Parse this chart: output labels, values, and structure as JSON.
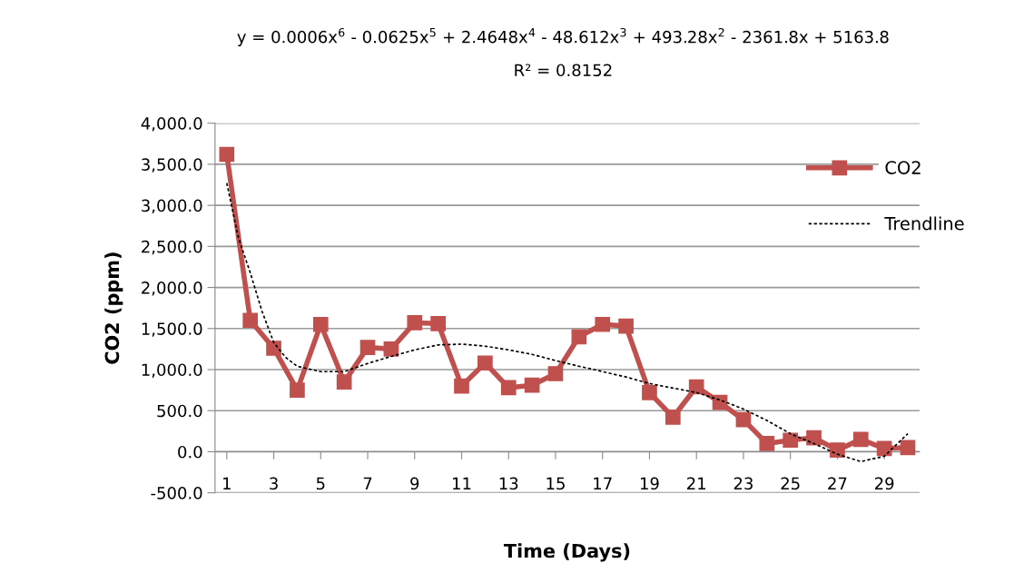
{
  "chart_data": {
    "type": "line",
    "xlabel": "Time (Days)",
    "ylabel": "CO2 (ppm)",
    "annotations": [
      "y = 0.0006x$^{6}$ - 0.0625x$^{5}$ + 2.4648x$^{4}$ - 48.612x$^{3}$ + 493.28x$^{2}$ - 2361.8x + 5163.8",
      "R² = 0.8152"
    ],
    "x": [
      1,
      2,
      3,
      4,
      5,
      6,
      7,
      8,
      9,
      10,
      11,
      12,
      13,
      14,
      15,
      16,
      17,
      18,
      19,
      20,
      21,
      22,
      23,
      24,
      25,
      26,
      27,
      28,
      29,
      30
    ],
    "xlim": [
      0.5,
      30.5
    ],
    "xticks": [
      1,
      3,
      5,
      7,
      9,
      11,
      13,
      15,
      17,
      19,
      21,
      23,
      25,
      27,
      29
    ],
    "ylim": [
      -500,
      4000
    ],
    "yticks": [
      {
        "value": -500,
        "label": "-500.0"
      },
      {
        "value": 0,
        "label": "0.0"
      },
      {
        "value": 500,
        "label": "500.0"
      },
      {
        "value": 1000,
        "label": "1,000.0"
      },
      {
        "value": 1500,
        "label": "1,500.0"
      },
      {
        "value": 2000,
        "label": "2,000.0"
      },
      {
        "value": 2500,
        "label": "2,500.0"
      },
      {
        "value": 3000,
        "label": "3,000.0"
      },
      {
        "value": 3500,
        "label": "3,500.0"
      },
      {
        "value": 4000,
        "label": "4,000.0"
      }
    ],
    "grid": "y",
    "legend": "right",
    "series": [
      {
        "name": "CO2",
        "color": "#c0504d",
        "marker": "square",
        "line_style": "solid",
        "values": [
          3620,
          1600,
          1260,
          750,
          1550,
          850,
          1270,
          1250,
          1570,
          1560,
          800,
          1080,
          780,
          810,
          950,
          1400,
          1550,
          1530,
          720,
          420,
          790,
          600,
          390,
          100,
          140,
          170,
          20,
          150,
          40,
          50
        ]
      },
      {
        "name": "Trendline",
        "color": "#000000",
        "marker": "none",
        "line_style": "dashed",
        "x": [
          1,
          1.5,
          2,
          2.5,
          3,
          3.5,
          4,
          5,
          6,
          7,
          8,
          9,
          10,
          11,
          12,
          13,
          14,
          15,
          16,
          16.5,
          17,
          18,
          19,
          20,
          21,
          22,
          23,
          24,
          25,
          26,
          27,
          28,
          29,
          30
        ],
        "values": [
          3270,
          2600,
          2180,
          1710,
          1330,
          1150,
          1040,
          975,
          975,
          1075,
          1160,
          1240,
          1300,
          1310,
          1285,
          1240,
          1185,
          1110,
          1040,
          1010,
          975,
          910,
          830,
          775,
          720,
          630,
          520,
          380,
          220,
          100,
          -30,
          -120,
          -55,
          220
        ]
      }
    ]
  }
}
